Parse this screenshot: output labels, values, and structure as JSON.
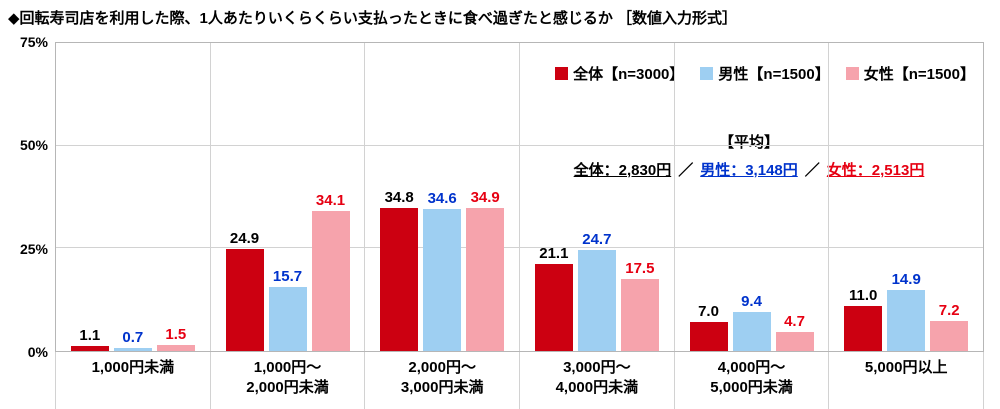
{
  "title": "◆回転寿司店を利用した際、1人あたりいくらくらい支払ったときに食べ過ぎたと感じるか ［数値入力形式］",
  "chart_data": {
    "type": "bar",
    "categories": [
      "1,000円未満",
      "1,000円～\n2,000円未満",
      "2,000円～\n3,000円未満",
      "3,000円～\n4,000円未満",
      "4,000円～\n5,000円未満",
      "5,000円以上"
    ],
    "series": [
      {
        "name": "全体【n=3000】",
        "color": "#cc0011",
        "label_color": "#000000",
        "values": [
          1.1,
          24.9,
          34.8,
          21.1,
          7.0,
          11.0
        ]
      },
      {
        "name": "男性【n=1500】",
        "color": "#9ecff2",
        "label_color": "#0033cc",
        "values": [
          0.7,
          15.7,
          34.6,
          24.7,
          9.4,
          14.9
        ]
      },
      {
        "name": "女性【n=1500】",
        "color": "#f6a3ac",
        "label_color": "#e60012",
        "values": [
          1.5,
          34.1,
          34.9,
          17.5,
          4.7,
          7.2
        ]
      }
    ],
    "ylim": [
      0,
      75
    ],
    "yticks": [
      0,
      25,
      50,
      75
    ],
    "ytick_suffix": "%",
    "gridlines": [
      25,
      50
    ],
    "legend_position": "top-right",
    "grid": true
  },
  "average": {
    "heading": "【平均】",
    "separator": "／",
    "items": [
      {
        "label": "全体：2,830円",
        "color": "#000000"
      },
      {
        "label": "男性：3,148円",
        "color": "#0033cc"
      },
      {
        "label": "女性：2,513円",
        "color": "#e60012"
      }
    ]
  }
}
